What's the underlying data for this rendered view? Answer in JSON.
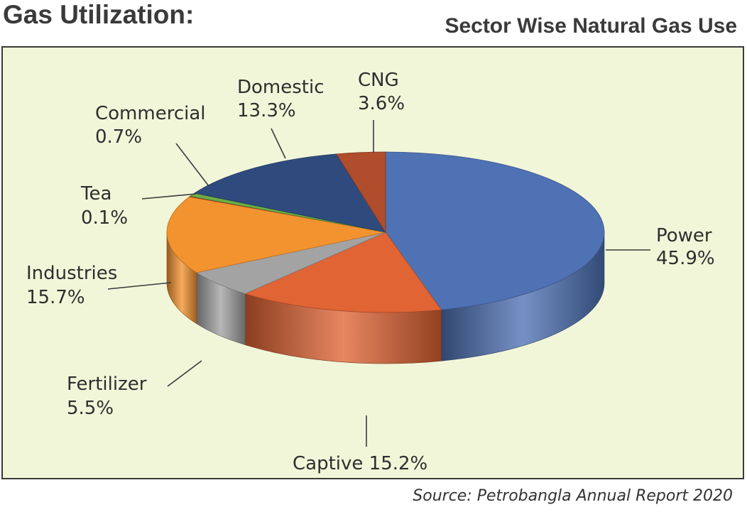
{
  "heading": "Gas Utilization:",
  "source": "Source: Petrobangla Annual Report 2020",
  "chart_data": {
    "type": "pie",
    "style": "3d",
    "title": "Sector Wise Natural Gas Use",
    "unit": "%",
    "slices": [
      {
        "name": "Power",
        "value": 45.9,
        "label": "45.9%",
        "color": "#4f72b5"
      },
      {
        "name": "Captive",
        "value": 15.2,
        "label": "15.2%",
        "color": "#e06434"
      },
      {
        "name": "Fertilizer",
        "value": 5.5,
        "label": "5.5%",
        "color": "#a3a3a3"
      },
      {
        "name": "Industries",
        "value": 15.7,
        "label": "15.7%",
        "color": "#f39330"
      },
      {
        "name": "Tea",
        "value": 0.1,
        "label": "0.1%",
        "color": "#d9302a"
      },
      {
        "name": "Commercial",
        "value": 0.7,
        "label": "0.7%",
        "color": "#6bae43"
      },
      {
        "name": "Domestic",
        "value": 13.3,
        "label": "13.3%",
        "color": "#2f4b7e"
      },
      {
        "name": "CNG",
        "value": 3.6,
        "label": "3.6%",
        "color": "#b04d2c"
      }
    ]
  }
}
